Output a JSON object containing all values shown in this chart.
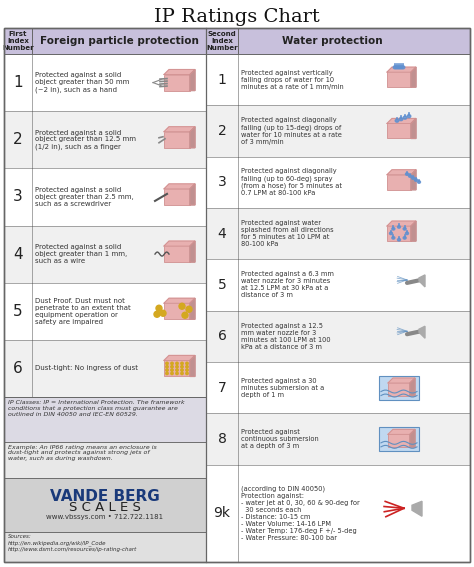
{
  "title": "IP Ratings Chart",
  "title_fontsize": 14,
  "background_color": "#ffffff",
  "header_color": "#c8c0dc",
  "row_bg_white": "#ffffff",
  "row_bg_gray": "#f0f0f0",
  "border_color": "#666666",
  "info_bg1": "#dcdae4",
  "info_bg2": "#e8e8e8",
  "info_bg3": "#d0d0d0",
  "info_bg4": "#e0e0e0",
  "left_col1_header": "First\nIndex\nNumber",
  "left_col2_header": "Foreign particle protection",
  "right_col1_header": "Second\nIndex\nNumber",
  "right_col2_header": "Water protection",
  "left_rows": [
    {
      "num": "1",
      "desc": "Protected against a solid\nobject greater than 50 mm\n(~2 in), such as a hand"
    },
    {
      "num": "2",
      "desc": "Protected against a solid\nobject greater than 12.5 mm\n(1/2 in), such as a finger"
    },
    {
      "num": "3",
      "desc": "Protected against a solid\nobject greater than 2.5 mm,\nsuch as a screwdriver"
    },
    {
      "num": "4",
      "desc": "Protected against a solid\nobject greater than 1 mm,\nsuch as a wire"
    },
    {
      "num": "5",
      "desc": "Dust Proof. Dust must not\npenetrate to an extent that\nequipment operation or\nsafety are impaired"
    },
    {
      "num": "6",
      "desc": "Dust-tight: No ingress of dust"
    }
  ],
  "right_rows": [
    {
      "num": "1",
      "desc": "Protected against vertically\nfalling drops of water for 10\nminutes at a rate of 1 mm/min"
    },
    {
      "num": "2",
      "desc": "Protected against diagonally\nfalling (up to 15-deg) drops of\nwater for 10 minutes at a rate\nof 3 mm/min"
    },
    {
      "num": "3",
      "desc": "Protected against diagonally\nfalling (up to 60-deg) spray\n(from a hose) for 5 minutes at\n0.7 LPM at 80-100 kPa"
    },
    {
      "num": "4",
      "desc": "Protected against water\nsplashed from all directions\nfor 5 minutes at 10 LPM at\n80-100 kPa"
    },
    {
      "num": "5",
      "desc": "Protected against a 6.3 mm\nwater nozzle for 3 minutes\nat 12.5 LPM at 30 kPa at a\ndistance of 3 m"
    },
    {
      "num": "6",
      "desc": "Protected against a 12.5\nmm water nozzle for 3\nminutes at 100 LPM at 100\nkPa at a distance of 3 m"
    },
    {
      "num": "7",
      "desc": "Protected against a 30\nminutes submersion at a\ndepth of 1 m"
    },
    {
      "num": "8",
      "desc": "Protected against\ncontinuous submersion\nat a depth of 3 m"
    },
    {
      "num": "9k",
      "desc": "(according to DIN 40050)\nProtection against:\n- water jet at 0, 30, 60 & 90-deg for\n  30 seconds each\n- Distance: 10-15 cm\n- Water Volume: 14-16 LPM\n- Water Temp: 176-deg F +/- 5-deg\n- Water Pressure: 80-100 bar"
    }
  ],
  "bottom_text1": "IP Classes: IP = International Protection. The framework\nconditions that a protection class must guarantee are\noutlined in DIN 40050 and IEC-EN 60529.",
  "bottom_text2": "Example: An IP66 rating means an enclosure is\ndust-tight and protects against strong jets of\nwater, such as during washdown.",
  "logo_line1": "VANDE BERG",
  "logo_line2": "S C A L E S",
  "logo_url": "www.vbssys.com • 712.722.1181",
  "sources": "Sources:\nhttp://en.wikipedia.org/wiki/IP_Code\nhttp://www.dsmt.com/resources/ip-rating-chart",
  "pink": "#e8b0b0",
  "pink_dark": "#d09090",
  "blue_drop": "#6090d0",
  "gold": "#d4a820",
  "logo_blue": "#1a3a7a"
}
